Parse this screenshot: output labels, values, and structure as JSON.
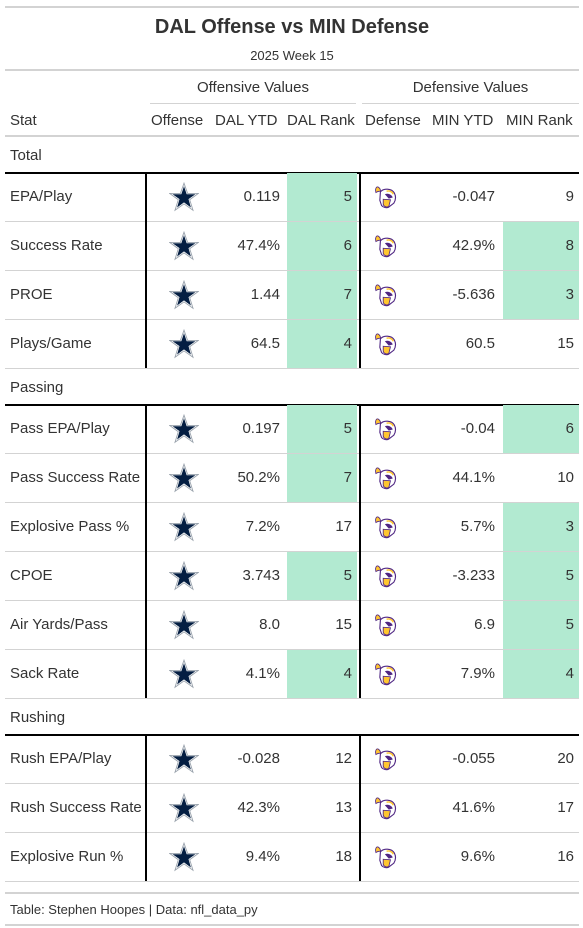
{
  "header": {
    "title": "DAL Offense vs MIN Defense",
    "subtitle": "2025 Week 15"
  },
  "spanners": {
    "offense": "Offensive Values",
    "defense": "Defensive Values"
  },
  "columns": {
    "stat": "Stat",
    "offense": "Offense",
    "dal_ytd": "DAL YTD",
    "dal_rank": "DAL Rank",
    "defense": "Defense",
    "min_ytd": "MIN YTD",
    "min_rank": "MIN Rank"
  },
  "icons": {
    "offense": "cowboys-star-icon",
    "defense": "vikings-helmet-icon"
  },
  "colors": {
    "highlight": "#b2ead1",
    "cowboys_navy": "#041e42",
    "vikings_purple": "#4f2683",
    "vikings_gold": "#ffc62f"
  },
  "groups": [
    {
      "name": "Total",
      "rows": [
        {
          "stat": "EPA/Play",
          "dal_ytd": "0.119",
          "dal_rank": "5",
          "dal_hl": true,
          "min_ytd": "-0.047",
          "min_rank": "9",
          "min_hl": false
        },
        {
          "stat": "Success Rate",
          "dal_ytd": "47.4%",
          "dal_rank": "6",
          "dal_hl": true,
          "min_ytd": "42.9%",
          "min_rank": "8",
          "min_hl": true
        },
        {
          "stat": "PROE",
          "dal_ytd": "1.44",
          "dal_rank": "7",
          "dal_hl": true,
          "min_ytd": "-5.636",
          "min_rank": "3",
          "min_hl": true
        },
        {
          "stat": "Plays/Game",
          "dal_ytd": "64.5",
          "dal_rank": "4",
          "dal_hl": true,
          "min_ytd": "60.5",
          "min_rank": "15",
          "min_hl": false
        }
      ]
    },
    {
      "name": "Passing",
      "rows": [
        {
          "stat": "Pass EPA/Play",
          "dal_ytd": "0.197",
          "dal_rank": "5",
          "dal_hl": true,
          "min_ytd": "-0.04",
          "min_rank": "6",
          "min_hl": true
        },
        {
          "stat": "Pass Success Rate",
          "dal_ytd": "50.2%",
          "dal_rank": "7",
          "dal_hl": true,
          "min_ytd": "44.1%",
          "min_rank": "10",
          "min_hl": false
        },
        {
          "stat": "Explosive Pass %",
          "dal_ytd": "7.2%",
          "dal_rank": "17",
          "dal_hl": false,
          "min_ytd": "5.7%",
          "min_rank": "3",
          "min_hl": true
        },
        {
          "stat": "CPOE",
          "dal_ytd": "3.743",
          "dal_rank": "5",
          "dal_hl": true,
          "min_ytd": "-3.233",
          "min_rank": "5",
          "min_hl": true
        },
        {
          "stat": "Air Yards/Pass",
          "dal_ytd": "8.0",
          "dal_rank": "15",
          "dal_hl": false,
          "min_ytd": "6.9",
          "min_rank": "5",
          "min_hl": true
        },
        {
          "stat": "Sack Rate",
          "dal_ytd": "4.1%",
          "dal_rank": "4",
          "dal_hl": true,
          "min_ytd": "7.9%",
          "min_rank": "4",
          "min_hl": true
        }
      ]
    },
    {
      "name": "Rushing",
      "rows": [
        {
          "stat": "Rush EPA/Play",
          "dal_ytd": "-0.028",
          "dal_rank": "12",
          "dal_hl": false,
          "min_ytd": "-0.055",
          "min_rank": "20",
          "min_hl": false
        },
        {
          "stat": "Rush Success Rate",
          "dal_ytd": "42.3%",
          "dal_rank": "13",
          "dal_hl": false,
          "min_ytd": "41.6%",
          "min_rank": "17",
          "min_hl": false
        },
        {
          "stat": "Explosive Run %",
          "dal_ytd": "9.4%",
          "dal_rank": "18",
          "dal_hl": false,
          "min_ytd": "9.6%",
          "min_rank": "16",
          "min_hl": false
        }
      ]
    }
  ],
  "footer": "Table: Stephen Hoopes | Data: nfl_data_py"
}
